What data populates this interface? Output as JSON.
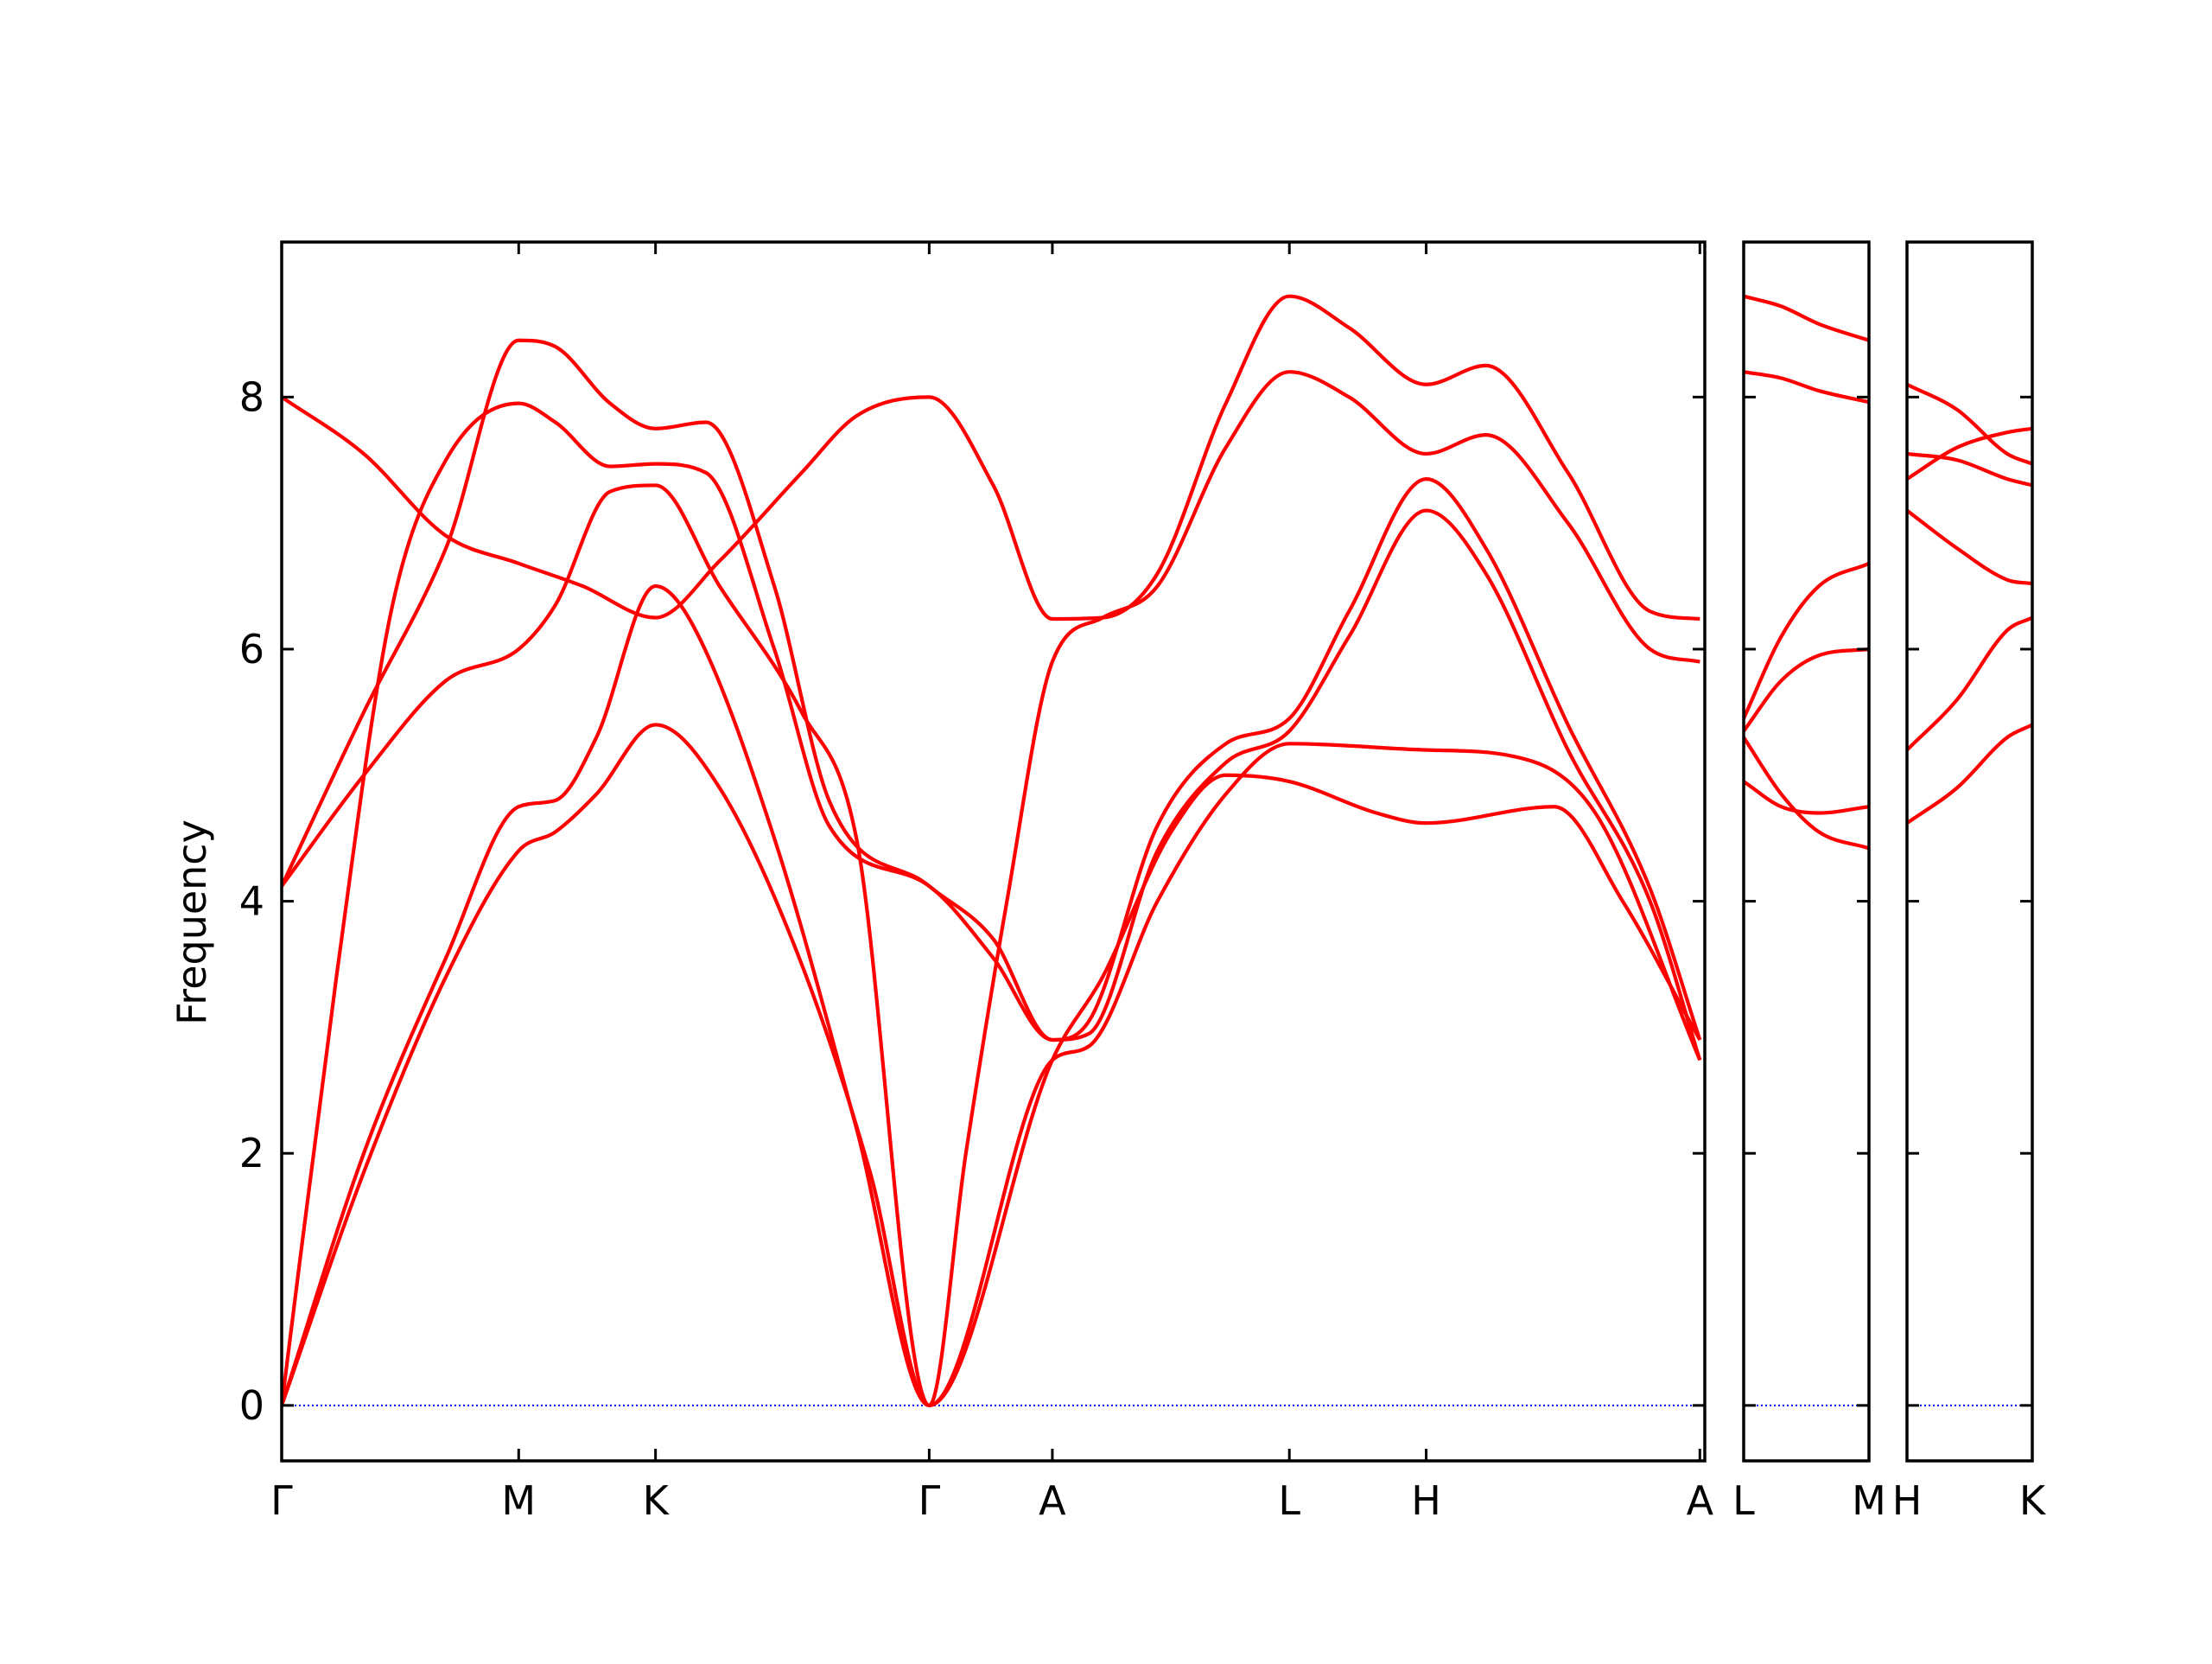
{
  "chart_data": {
    "type": "line",
    "title": "",
    "ylabel": "Frequency",
    "ylim": [
      -0.44,
      9.23
    ],
    "yticks": [
      0,
      2,
      4,
      6,
      8
    ],
    "grid": false,
    "legend": "none",
    "colors": {
      "bands": "#ff0000",
      "zero_line": "#0000ff",
      "axes": "#000000"
    },
    "panels": [
      {
        "name": "main-path",
        "xlim": [
          0,
          5.2
        ],
        "ticks": [
          {
            "x": 0.0,
            "label": "Γ"
          },
          {
            "x": 0.866,
            "label": "M"
          },
          {
            "x": 1.366,
            "label": "K"
          },
          {
            "x": 2.366,
            "label": "Γ"
          },
          {
            "x": 2.816,
            "label": "A"
          },
          {
            "x": 3.682,
            "label": "L"
          },
          {
            "x": 4.182,
            "label": "H"
          },
          {
            "x": 5.182,
            "label": "A"
          }
        ],
        "bands": [
          {
            "name": "band-1",
            "points": [
              [
                0,
                0
              ],
              [
                0.3,
                1.85
              ],
              [
                0.6,
                3.4
              ],
              [
                0.866,
                4.4
              ],
              [
                1.0,
                4.55
              ],
              [
                1.15,
                4.85
              ],
              [
                1.366,
                5.4
              ],
              [
                1.6,
                4.9
              ],
              [
                1.9,
                3.5
              ],
              [
                2.15,
                1.85
              ],
              [
                2.366,
                0
              ],
              [
                2.816,
                2.74
              ],
              [
                2.95,
                2.85
              ],
              [
                3.2,
                4.0
              ],
              [
                3.45,
                4.85
              ],
              [
                3.682,
                5.25
              ],
              [
                4.182,
                5.2
              ],
              [
                4.5,
                5.15
              ],
              [
                4.8,
                4.7
              ],
              [
                5.182,
                2.74
              ]
            ]
          },
          {
            "name": "band-2",
            "points": [
              [
                0,
                0
              ],
              [
                0.3,
                2.0
              ],
              [
                0.6,
                3.55
              ],
              [
                0.866,
                4.75
              ],
              [
                1.0,
                4.8
              ],
              [
                1.15,
                5.3
              ],
              [
                1.366,
                6.5
              ],
              [
                1.5,
                6.2
              ],
              [
                1.8,
                4.5
              ],
              [
                2.1,
                2.2
              ],
              [
                2.366,
                0
              ],
              [
                2.816,
                2.74
              ],
              [
                3.0,
                3.4
              ],
              [
                3.25,
                4.55
              ],
              [
                3.45,
                5.0
              ],
              [
                3.682,
                4.95
              ],
              [
                4.0,
                4.7
              ],
              [
                4.182,
                4.62
              ],
              [
                4.65,
                4.75
              ],
              [
                4.9,
                4.0
              ],
              [
                5.182,
                2.9
              ]
            ]
          },
          {
            "name": "band-3",
            "points": [
              [
                0,
                0
              ],
              [
                0.2,
                3.4
              ],
              [
                0.4,
                6.3
              ],
              [
                0.6,
                7.5
              ],
              [
                0.866,
                7.95
              ],
              [
                1.0,
                7.8
              ],
              [
                1.2,
                7.45
              ],
              [
                1.366,
                7.47
              ],
              [
                1.55,
                7.4
              ],
              [
                1.8,
                6.0
              ],
              [
                2.0,
                4.6
              ],
              [
                2.366,
                4.12
              ],
              [
                2.6,
                3.55
              ],
              [
                2.816,
                2.9
              ],
              [
                2.95,
                2.95
              ],
              [
                3.2,
                4.4
              ],
              [
                3.45,
                5.1
              ],
              [
                3.682,
                5.35
              ],
              [
                3.9,
                6.1
              ],
              [
                4.182,
                7.1
              ],
              [
                4.4,
                6.6
              ],
              [
                4.7,
                5.2
              ],
              [
                5.0,
                4.0
              ],
              [
                5.182,
                2.74
              ]
            ]
          },
          {
            "name": "band-4",
            "points": [
              [
                0,
                4.12
              ],
              [
                0.3,
                5.5
              ],
              [
                0.6,
                6.8
              ],
              [
                0.866,
                8.45
              ],
              [
                1.0,
                8.4
              ],
              [
                1.2,
                7.95
              ],
              [
                1.366,
                7.75
              ],
              [
                1.55,
                7.8
              ],
              [
                1.8,
                6.5
              ],
              [
                2.0,
                4.8
              ],
              [
                2.366,
                4.12
              ],
              [
                2.6,
                3.7
              ],
              [
                2.816,
                2.9
              ],
              [
                2.95,
                3.05
              ],
              [
                3.2,
                4.6
              ],
              [
                3.45,
                5.25
              ],
              [
                3.682,
                5.45
              ],
              [
                3.9,
                6.3
              ],
              [
                4.182,
                7.35
              ],
              [
                4.4,
                6.8
              ],
              [
                4.7,
                5.4
              ],
              [
                5.0,
                4.1
              ],
              [
                5.182,
                2.9
              ]
            ]
          },
          {
            "name": "band-5",
            "points": [
              [
                0,
                4.12
              ],
              [
                0.3,
                5.0
              ],
              [
                0.6,
                5.75
              ],
              [
                0.866,
                6.0
              ],
              [
                1.0,
                6.35
              ],
              [
                1.2,
                7.25
              ],
              [
                1.366,
                7.3
              ],
              [
                1.6,
                6.5
              ],
              [
                1.9,
                5.5
              ],
              [
                2.1,
                4.5
              ],
              [
                2.366,
                0
              ],
              [
                2.5,
                2.0
              ],
              [
                2.65,
                4.0
              ],
              [
                2.816,
                5.9
              ],
              [
                3.0,
                6.25
              ],
              [
                3.2,
                6.5
              ],
              [
                3.45,
                7.6
              ],
              [
                3.682,
                8.2
              ],
              [
                3.9,
                8.0
              ],
              [
                4.182,
                7.55
              ],
              [
                4.4,
                7.7
              ],
              [
                4.7,
                7.0
              ],
              [
                5.0,
                6.0
              ],
              [
                5.182,
                5.9
              ]
            ]
          },
          {
            "name": "band-6",
            "points": [
              [
                0,
                8.0
              ],
              [
                0.3,
                7.55
              ],
              [
                0.6,
                6.9
              ],
              [
                0.866,
                6.68
              ],
              [
                1.1,
                6.5
              ],
              [
                1.366,
                6.25
              ],
              [
                1.6,
                6.7
              ],
              [
                1.9,
                7.4
              ],
              [
                2.1,
                7.85
              ],
              [
                2.366,
                8.0
              ],
              [
                2.6,
                7.3
              ],
              [
                2.816,
                6.24
              ],
              [
                3.0,
                6.25
              ],
              [
                3.2,
                6.6
              ],
              [
                3.45,
                7.95
              ],
              [
                3.682,
                8.8
              ],
              [
                3.9,
                8.55
              ],
              [
                4.182,
                8.1
              ],
              [
                4.4,
                8.25
              ],
              [
                4.7,
                7.4
              ],
              [
                5.0,
                6.3
              ],
              [
                5.182,
                6.24
              ]
            ]
          }
        ]
      },
      {
        "name": "l-m-segment",
        "xlim": [
          0,
          0.5
        ],
        "ticks": [
          {
            "x": 0.0,
            "label": "L"
          },
          {
            "x": 0.5,
            "label": "M"
          }
        ],
        "bands": [
          {
            "name": "band-1",
            "points": [
              [
                0,
                5.3
              ],
              [
                0.15,
                4.85
              ],
              [
                0.3,
                4.55
              ],
              [
                0.5,
                4.42
              ]
            ]
          },
          {
            "name": "band-2",
            "points": [
              [
                0,
                4.95
              ],
              [
                0.15,
                4.75
              ],
              [
                0.3,
                4.7
              ],
              [
                0.5,
                4.75
              ]
            ]
          },
          {
            "name": "band-3",
            "points": [
              [
                0,
                5.35
              ],
              [
                0.15,
                5.75
              ],
              [
                0.3,
                5.95
              ],
              [
                0.5,
                6.0
              ]
            ]
          },
          {
            "name": "band-4",
            "points": [
              [
                0,
                5.45
              ],
              [
                0.15,
                6.1
              ],
              [
                0.3,
                6.5
              ],
              [
                0.5,
                6.68
              ]
            ]
          },
          {
            "name": "band-5",
            "points": [
              [
                0,
                8.2
              ],
              [
                0.15,
                8.15
              ],
              [
                0.3,
                8.05
              ],
              [
                0.5,
                7.96
              ]
            ]
          },
          {
            "name": "band-6",
            "points": [
              [
                0,
                8.8
              ],
              [
                0.15,
                8.72
              ],
              [
                0.3,
                8.58
              ],
              [
                0.5,
                8.45
              ]
            ]
          }
        ]
      },
      {
        "name": "h-k-segment",
        "xlim": [
          0,
          0.5
        ],
        "ticks": [
          {
            "x": 0.0,
            "label": "H"
          },
          {
            "x": 0.5,
            "label": "K"
          }
        ],
        "bands": [
          {
            "name": "band-1",
            "points": [
              [
                0,
                4.62
              ],
              [
                0.2,
                4.9
              ],
              [
                0.4,
                5.3
              ],
              [
                0.5,
                5.4
              ]
            ]
          },
          {
            "name": "band-2",
            "points": [
              [
                0,
                5.2
              ],
              [
                0.2,
                5.6
              ],
              [
                0.4,
                6.15
              ],
              [
                0.5,
                6.25
              ]
            ]
          },
          {
            "name": "band-3",
            "points": [
              [
                0,
                7.1
              ],
              [
                0.2,
                6.8
              ],
              [
                0.4,
                6.55
              ],
              [
                0.5,
                6.52
              ]
            ]
          },
          {
            "name": "band-4",
            "points": [
              [
                0,
                7.35
              ],
              [
                0.2,
                7.6
              ],
              [
                0.4,
                7.72
              ],
              [
                0.5,
                7.75
              ]
            ]
          },
          {
            "name": "band-5",
            "points": [
              [
                0,
                7.55
              ],
              [
                0.2,
                7.5
              ],
              [
                0.4,
                7.35
              ],
              [
                0.5,
                7.3
              ]
            ]
          },
          {
            "name": "band-6",
            "points": [
              [
                0,
                8.1
              ],
              [
                0.2,
                7.9
              ],
              [
                0.4,
                7.55
              ],
              [
                0.5,
                7.47
              ]
            ]
          }
        ]
      }
    ]
  }
}
